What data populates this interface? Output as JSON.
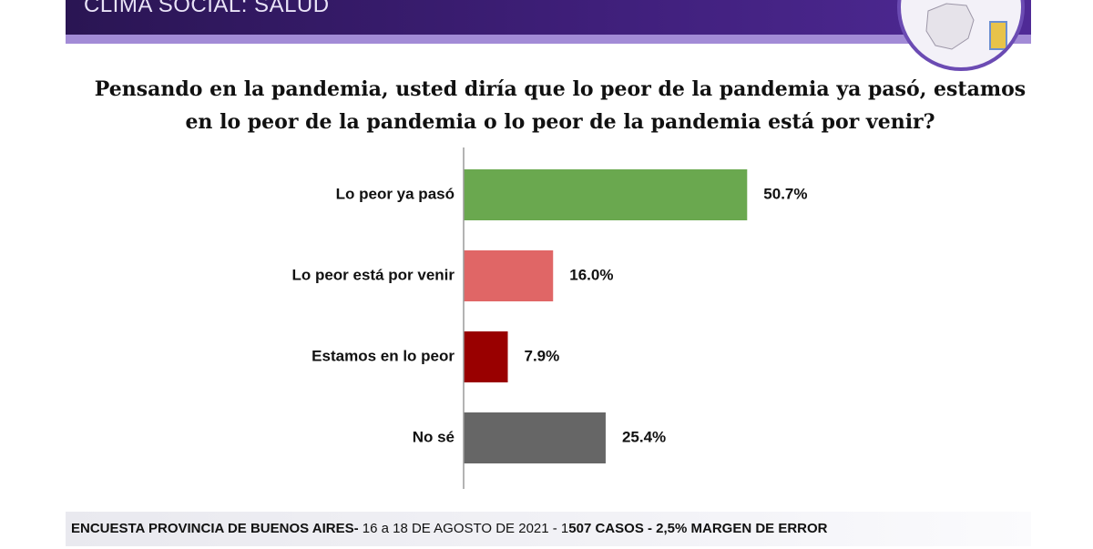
{
  "header": {
    "title": "CLIMA SOCIAL: SALUD"
  },
  "question": "Pensando en la pandemia, usted diría que lo peor de la pandemia ya pasó, estamos en lo peor de la pandemia o lo peor de la pandemia está por venir?",
  "colors": {
    "header_bg": "#3f1f7a",
    "header_stripe": "#a28bd6"
  },
  "chart_data": {
    "type": "bar",
    "orientation": "horizontal",
    "categories": [
      "Lo peor ya pasó",
      "Lo peor está por venir",
      "Estamos en lo peor",
      "No sé"
    ],
    "values": [
      50.7,
      16.0,
      7.9,
      25.4
    ],
    "value_labels": [
      "50.7%",
      "16.0%",
      "7.9%",
      "25.4%"
    ],
    "colors": [
      "#6aa84f",
      "#e06666",
      "#990000",
      "#666666"
    ],
    "unit": "%",
    "xlim": [
      0,
      100
    ],
    "grid": false,
    "legend": "none"
  },
  "footer": {
    "text_bold_1": "ENCUESTA PROVINCIA DE BUENOS AIRES-",
    "text_regular": " 16 a 18 DE AGOSTO DE 2021 - 1",
    "text_bold_2": "507 CASOS - 2,5% MARGEN DE ERROR"
  }
}
